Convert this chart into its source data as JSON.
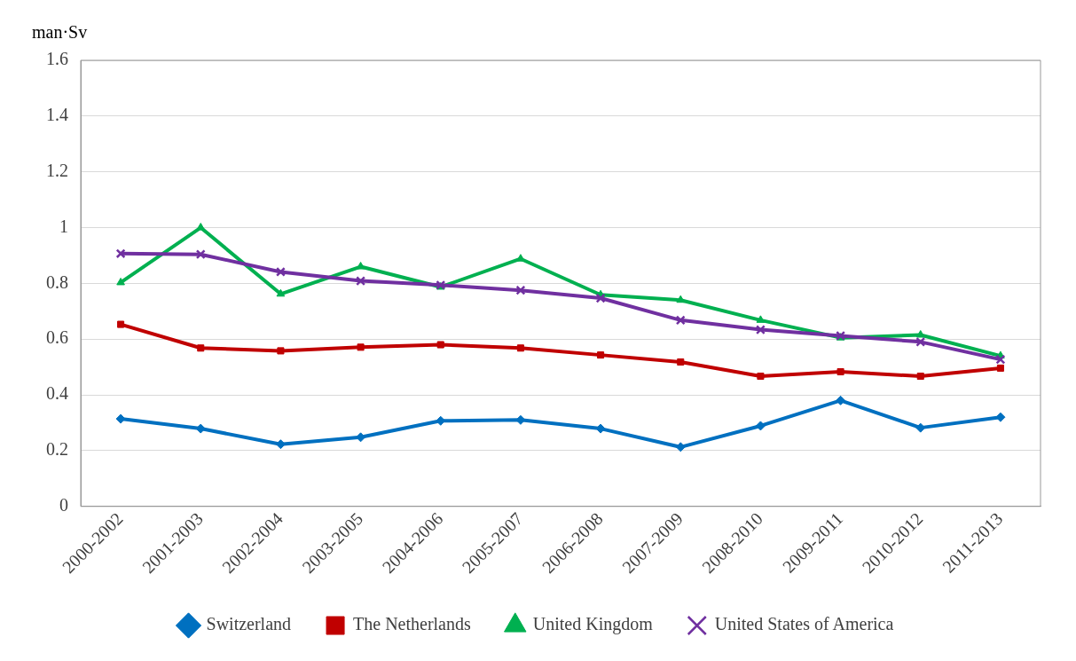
{
  "chart_data": {
    "type": "line",
    "ylabel": "man·Sv",
    "categories": [
      "2000-2002",
      "2001-2003",
      "2002-2004",
      "2003-2005",
      "2004-2006",
      "2005-2007",
      "2006-2008",
      "2007-2009",
      "2008-2010",
      "2009-2011",
      "2010-2012",
      "2011-2013"
    ],
    "series": [
      {
        "name": "Switzerland",
        "color": "#0070c0",
        "marker": "diamond",
        "values": [
          0.314,
          0.279,
          0.223,
          0.248,
          0.307,
          0.31,
          0.279,
          0.213,
          0.289,
          0.38,
          0.282,
          0.32
        ]
      },
      {
        "name": "The Netherlands",
        "color": "#c00000",
        "marker": "square",
        "values": [
          0.653,
          0.568,
          0.558,
          0.571,
          0.58,
          0.568,
          0.543,
          0.518,
          0.467,
          0.483,
          0.467,
          0.496
        ]
      },
      {
        "name": "United Kingdom",
        "color": "#00b050",
        "marker": "triangle",
        "values": [
          0.803,
          1.0,
          0.762,
          0.86,
          0.787,
          0.888,
          0.759,
          0.74,
          0.668,
          0.605,
          0.615,
          0.54
        ]
      },
      {
        "name": "United States of America",
        "color": "#7030a0",
        "marker": "cross",
        "values": [
          0.907,
          0.904,
          0.841,
          0.809,
          0.794,
          0.775,
          0.747,
          0.668,
          0.634,
          0.612,
          0.59,
          0.527
        ]
      }
    ],
    "ylim": [
      0,
      1.6
    ],
    "yticks": [
      0,
      0.2,
      0.4,
      0.6,
      0.8,
      1,
      1.2,
      1.4,
      1.6
    ],
    "grid": "y",
    "legend": "bottom",
    "line_style": "solid"
  }
}
